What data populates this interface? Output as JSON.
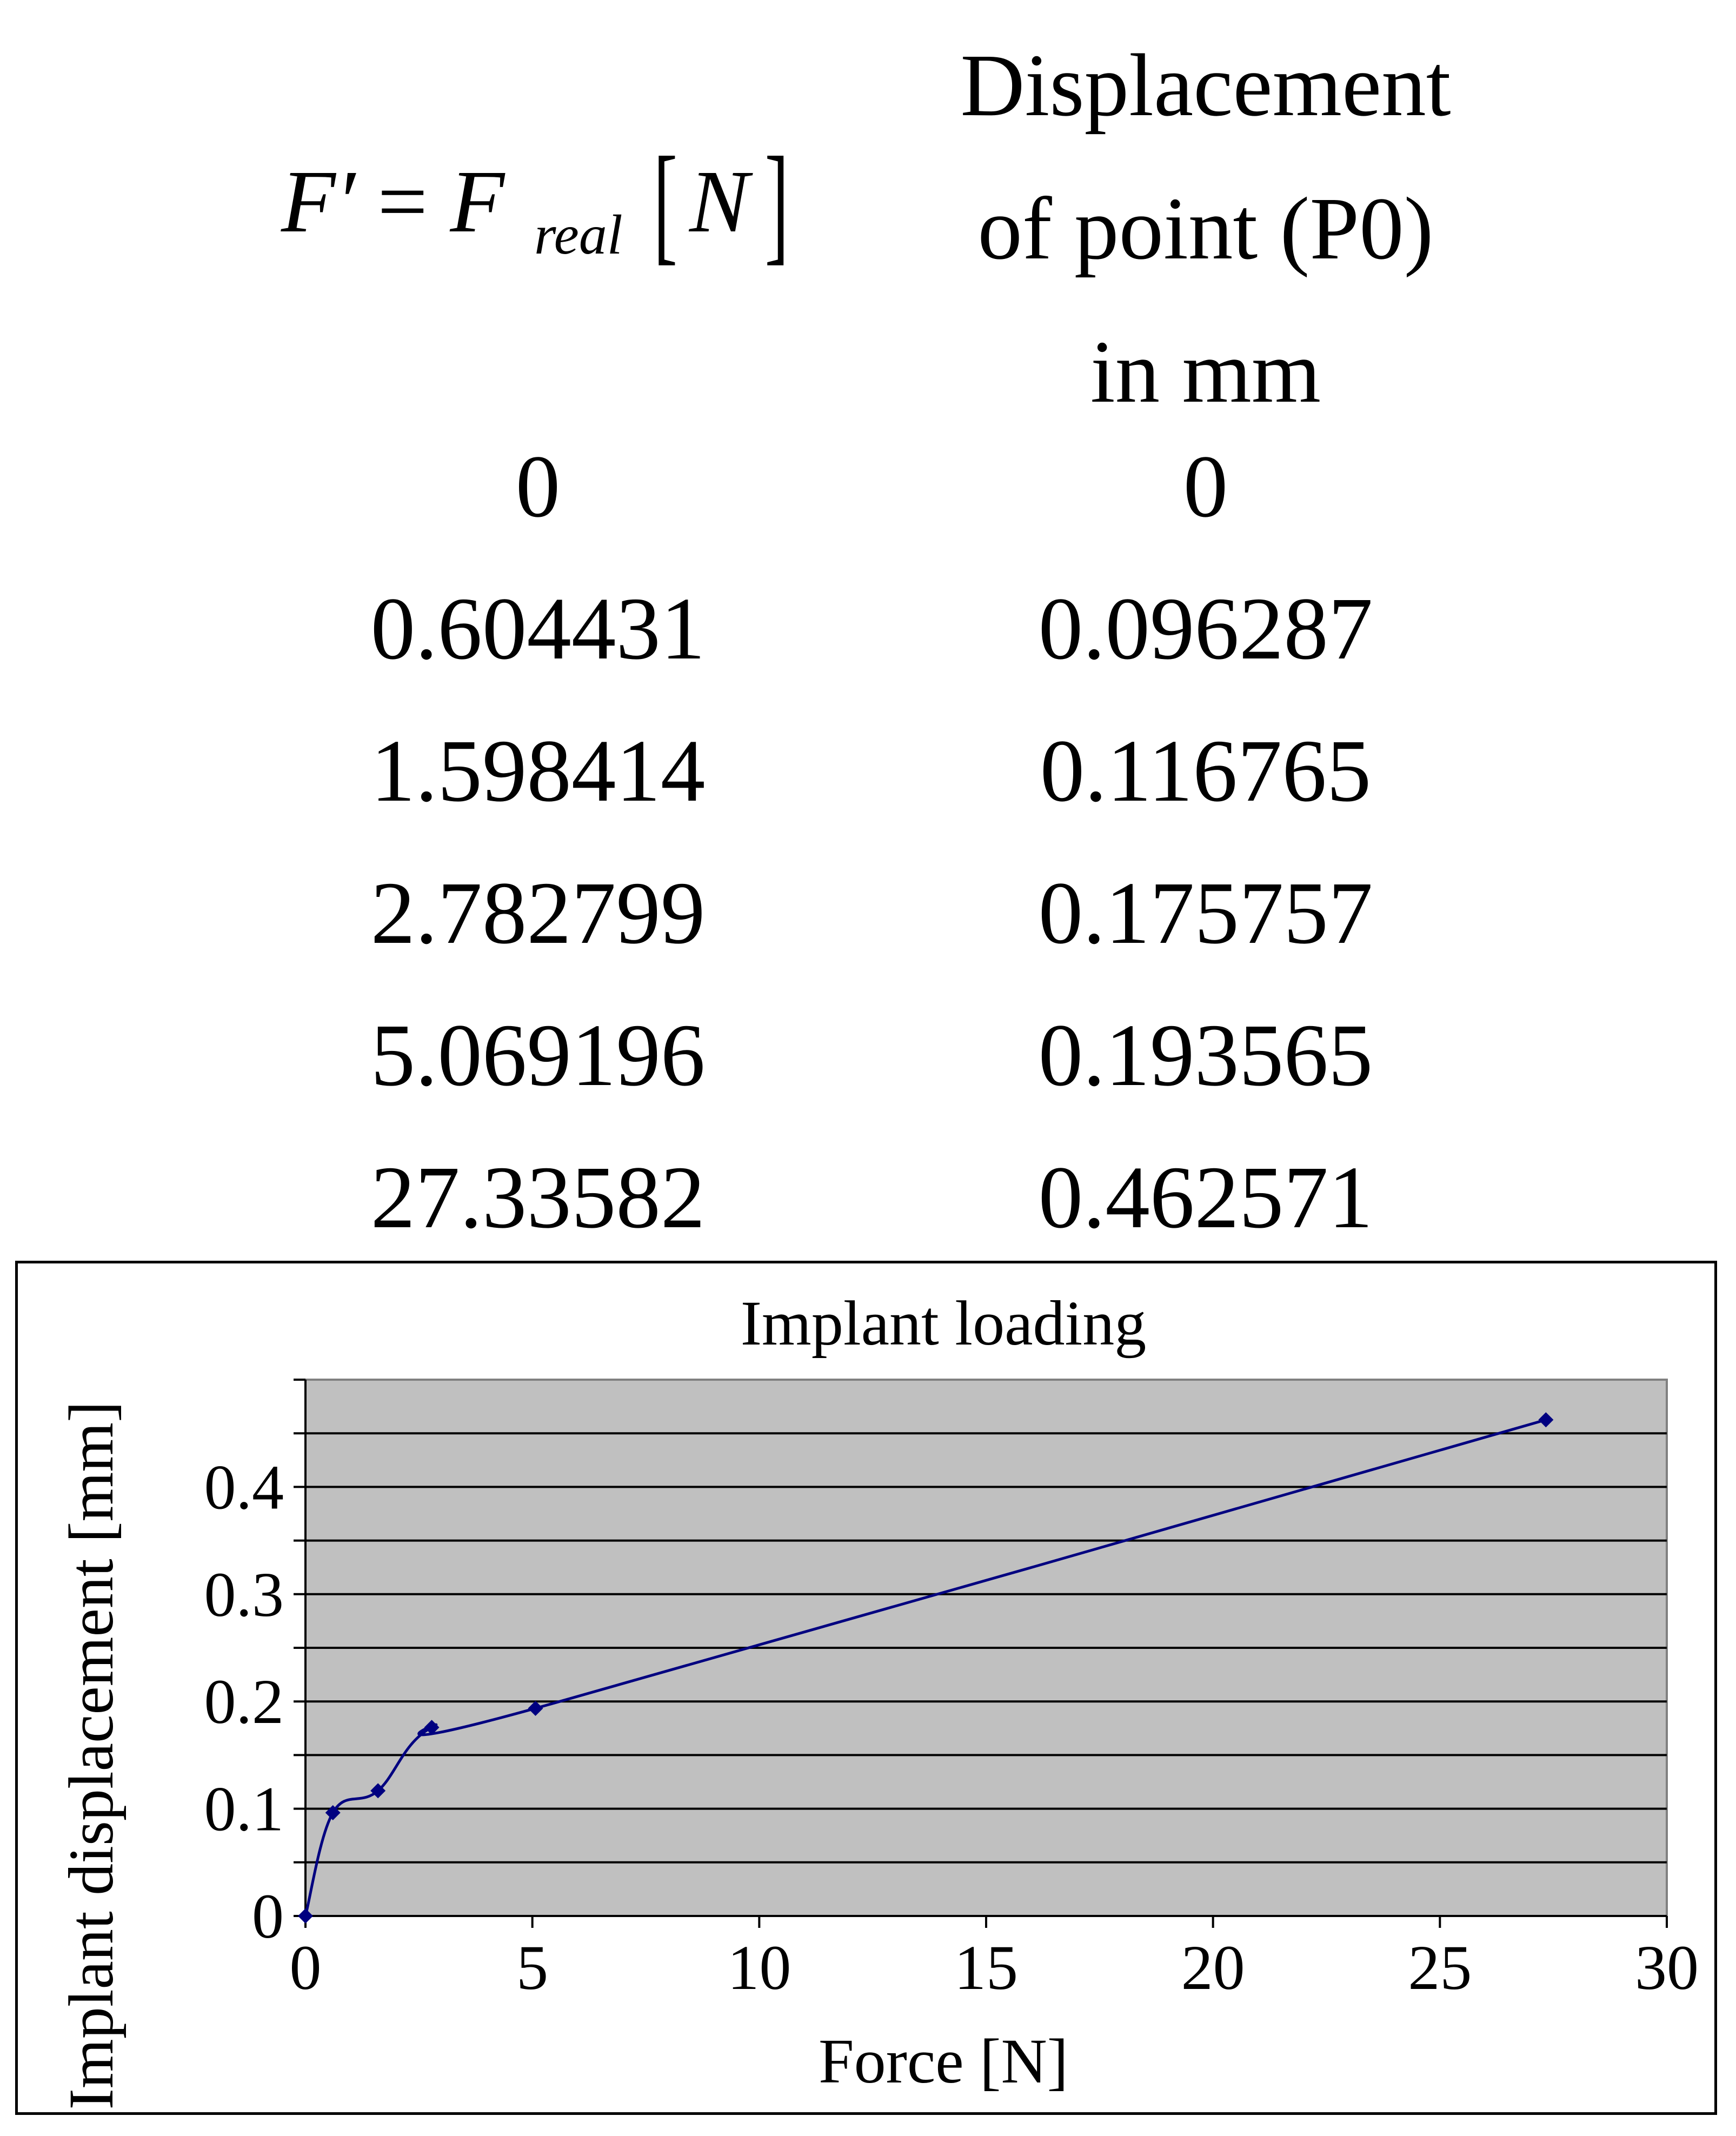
{
  "table": {
    "header": {
      "force_symbol": "F′",
      "equals": "=",
      "force_real": "F",
      "force_real_sub": "real",
      "bracket_open": "[",
      "unit": "N",
      "bracket_close": "]",
      "displacement_lines": [
        "Displacement",
        "of point (P0)",
        "in mm"
      ]
    },
    "rows": [
      {
        "force": "0",
        "displacement": "0"
      },
      {
        "force": "0.604431",
        "displacement": "0.096287"
      },
      {
        "force": "1.598414",
        "displacement": "0.116765"
      },
      {
        "force": "2.782799",
        "displacement": "0.175757"
      },
      {
        "force": "5.069196",
        "displacement": "0.193565"
      },
      {
        "force": "27.33582",
        "displacement": "0.462571"
      }
    ]
  },
  "chart_data": {
    "type": "line",
    "title": "Implant loading",
    "xlabel": "Force [N]",
    "ylabel": "Implant displacement [mm]",
    "xlim": [
      0,
      30
    ],
    "ylim": [
      0,
      0.5
    ],
    "xticks": [
      0,
      5,
      10,
      15,
      20,
      25,
      30
    ],
    "yticks": [
      0,
      0.1,
      0.2,
      0.3,
      0.4
    ],
    "ytick_labels": [
      "0",
      "0.1",
      "0.2",
      "0.3",
      "0.4"
    ],
    "grid_step": 0.05,
    "grid": true,
    "legend": "none",
    "plot_background": "#c0c0c0",
    "series_color": "#000080",
    "series": [
      {
        "x": [
          0,
          0.604431,
          1.598414,
          2.782799,
          5.069196,
          27.33582
        ],
        "y": [
          0,
          0.096287,
          0.116765,
          0.175757,
          0.193565,
          0.462571
        ]
      }
    ]
  }
}
